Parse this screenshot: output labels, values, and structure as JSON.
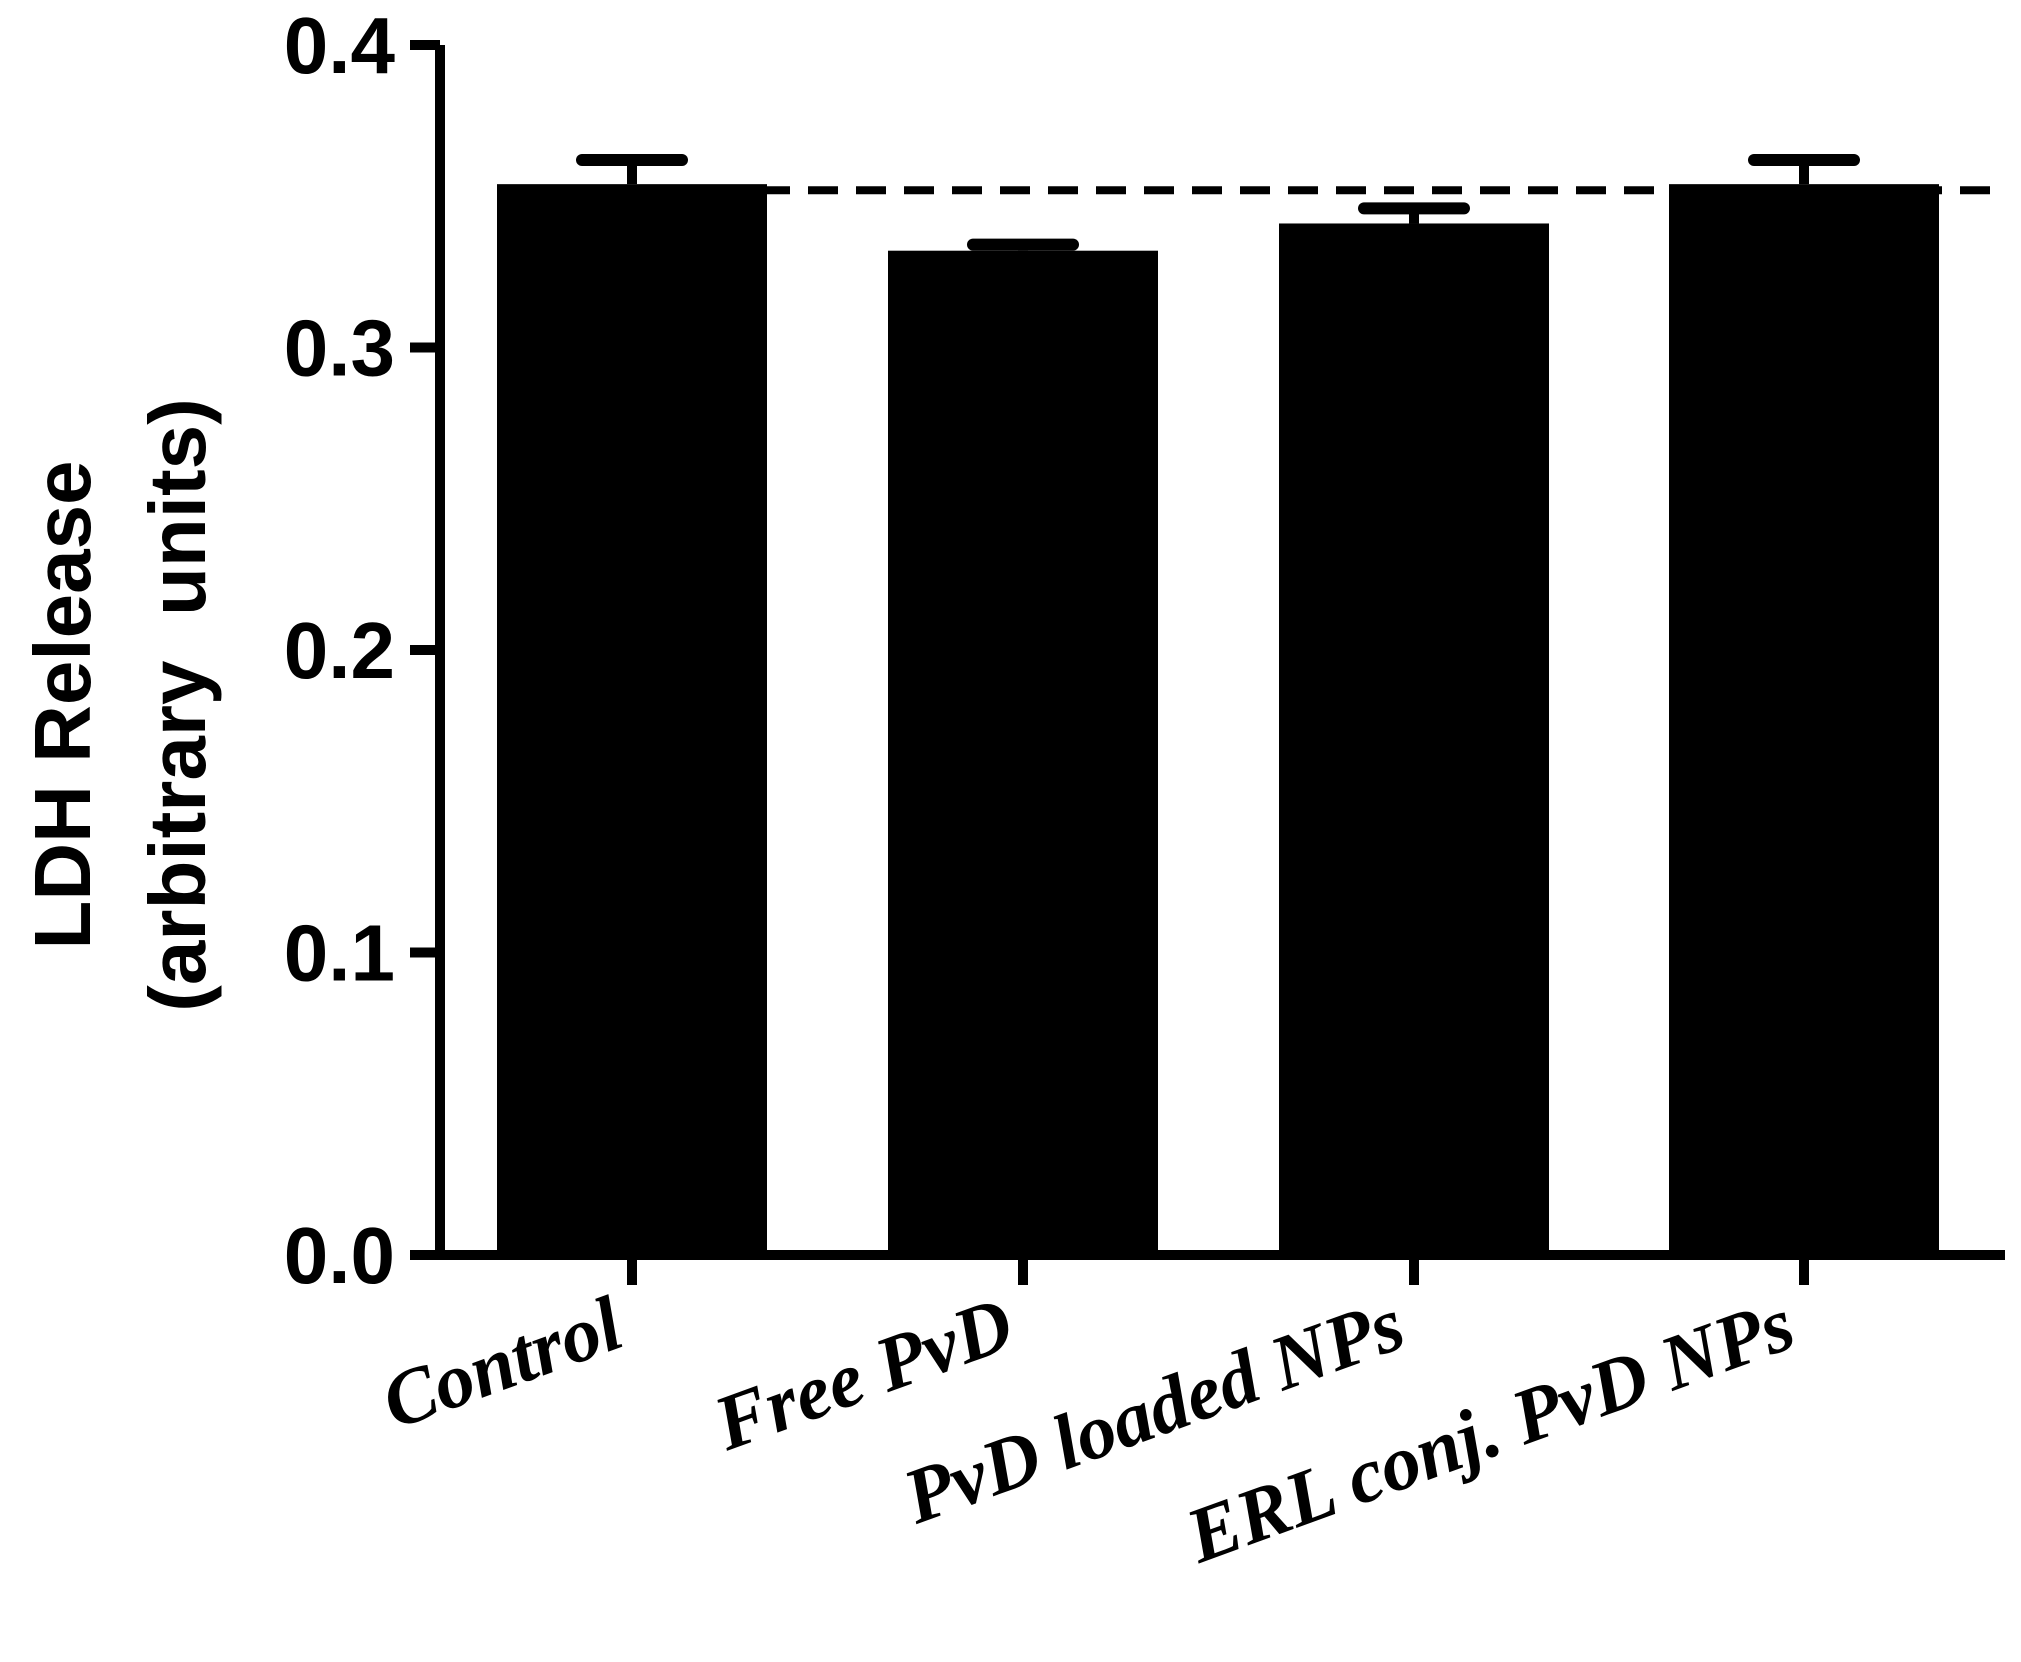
{
  "chart_data": {
    "type": "bar",
    "categories": [
      "Control",
      "Free PvD",
      "PvD loaded NPs",
      "ERL conj. PvD NPs"
    ],
    "values": [
      0.354,
      0.332,
      0.341,
      0.354
    ],
    "error": [
      0.008,
      0.002,
      0.005,
      0.008
    ],
    "reference_line": 0.352,
    "ylabel_line1": "LDH Release",
    "ylabel_line2": "(arbitrary  units)",
    "ylim": [
      0,
      0.4
    ],
    "yticks": [
      "0.0",
      "0.1",
      "0.2",
      "0.3",
      "0.4"
    ],
    "ytick_values": [
      0,
      0.1,
      0.2,
      0.3,
      0.4
    ],
    "bar_color": "#000000",
    "grid": false
  }
}
